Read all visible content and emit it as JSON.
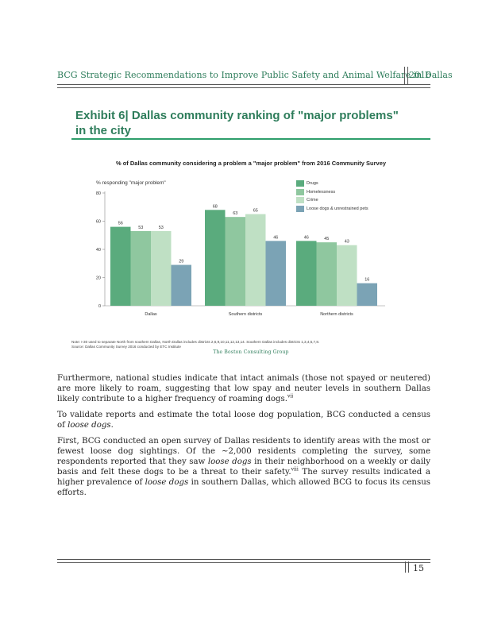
{
  "header": {
    "title": "BCG Strategic Recommendations to Improve Public Safety and Animal Welfare in Dallas",
    "year": "2016"
  },
  "exhibit": {
    "title": "Exhibit 6| Dallas community ranking of \"major problems\" in the city"
  },
  "chart_data": {
    "type": "bar",
    "title": "% of Dallas community considering a problem a \"major problem\" from 2016 Community Survey",
    "ylabel": "% responding \"major problem\"",
    "xlabel": "",
    "categories": [
      "Dallas",
      "Southern districts",
      "Northern districts"
    ],
    "series": [
      {
        "name": "Drugs",
        "color": "#5aab7d",
        "values": [
          56,
          68,
          46
        ]
      },
      {
        "name": "Homelessness",
        "color": "#8fc79f",
        "values": [
          53,
          63,
          45
        ]
      },
      {
        "name": "Crime",
        "color": "#bfe0c4",
        "values": [
          53,
          65,
          43
        ]
      },
      {
        "name": "Loose dogs & unrestrained pets",
        "color": "#7ba3b5",
        "values": [
          29,
          46,
          16
        ]
      }
    ],
    "ylim": [
      0,
      80
    ],
    "yticks": [
      0,
      20,
      40,
      60,
      80
    ],
    "grid": false,
    "legend_position": "top-right",
    "note": "Note: I-30 used to separate North from southern Dallas, North Dallas includes districts 2,6,9,10,11,12,13,14. Southern Dallas includes districts 1,3,4,5,7,8.",
    "source": "Source: Dallas Community Survey 2016 conducted by ETC Institute"
  },
  "logo_text": "The Boston Consulting Group",
  "body": {
    "p1": "Furthermore, national studies indicate that intact animals (those not spayed or neutered) are more likely to roam, suggesting that low spay and neuter levels in southern Dallas likely contribute to a higher frequency of roaming dogs.",
    "p1_sup": "vii",
    "p2_a": "To validate reports and estimate the total loose dog population, BCG conducted a census of ",
    "p2_em": "loose dogs",
    "p2_b": ".",
    "p3_a": "First, BCG conducted an open survey of Dallas residents to identify areas with the most or fewest loose dog sightings. Of the ~2,000 residents completing the survey, some respondents reported that they saw ",
    "p3_em1": "loose dogs",
    "p3_b": " in their neighborhood on a weekly or daily basis and felt these dogs to be a threat to their safety.",
    "p3_sup": "viii",
    "p3_c": " The survey results indicated a higher prevalence of ",
    "p3_em2": "loose dogs",
    "p3_d": " in southern Dallas, which allowed BCG to focus its census efforts."
  },
  "footer": {
    "page_number": "15"
  }
}
